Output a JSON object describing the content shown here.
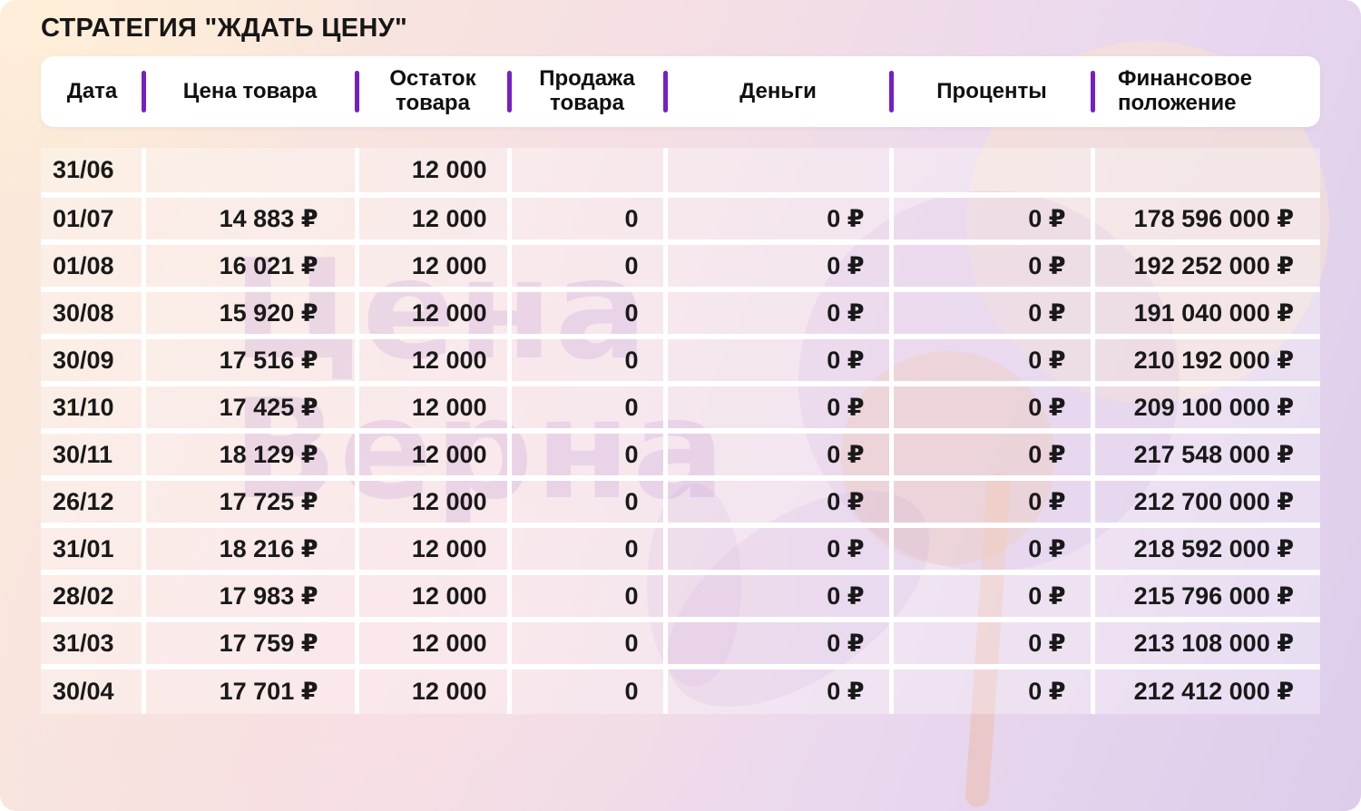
{
  "title": "СТРАТЕГИЯ \"ЖДАТЬ ЦЕНУ\"",
  "watermark": {
    "line1": "Цена",
    "line2": "Верна"
  },
  "colors": {
    "separator": "#7420c4",
    "header_bg": "#ffffff",
    "text": "#191919"
  },
  "chart_data": {
    "type": "table",
    "title": "СТРАТЕГИЯ \"ЖДАТЬ ЦЕНУ\"",
    "columns": [
      "Дата",
      "Цена товара",
      "Остаток товара",
      "Продажа товара",
      "Деньги",
      "Проценты",
      "Финансовое положение"
    ],
    "rows": [
      [
        "31/06",
        "",
        "12 000",
        "",
        "",
        "",
        ""
      ],
      [
        "01/07",
        "14 883 ₽",
        "12 000",
        "0",
        "0 ₽",
        "0 ₽",
        "178 596 000 ₽"
      ],
      [
        "01/08",
        "16 021 ₽",
        "12 000",
        "0",
        "0 ₽",
        "0 ₽",
        "192 252 000 ₽"
      ],
      [
        "30/08",
        "15 920 ₽",
        "12 000",
        "0",
        "0 ₽",
        "0 ₽",
        "191 040 000 ₽"
      ],
      [
        "30/09",
        "17 516 ₽",
        "12 000",
        "0",
        "0 ₽",
        "0 ₽",
        "210 192 000 ₽"
      ],
      [
        "31/10",
        "17 425 ₽",
        "12 000",
        "0",
        "0 ₽",
        "0 ₽",
        "209 100 000 ₽"
      ],
      [
        "30/11",
        "18 129 ₽",
        "12 000",
        "0",
        "0 ₽",
        "0 ₽",
        "217 548 000 ₽"
      ],
      [
        "26/12",
        "17 725 ₽",
        "12 000",
        "0",
        "0 ₽",
        "0 ₽",
        "212 700 000 ₽"
      ],
      [
        "31/01",
        "18 216 ₽",
        "12 000",
        "0",
        "0 ₽",
        "0 ₽",
        "218 592 000 ₽"
      ],
      [
        "28/02",
        "17 983 ₽",
        "12 000",
        "0",
        "0 ₽",
        "0 ₽",
        "215 796 000 ₽"
      ],
      [
        "31/03",
        "17 759 ₽",
        "12 000",
        "0",
        "0 ₽",
        "0 ₽",
        "213 108 000 ₽"
      ],
      [
        "30/04",
        "17 701 ₽",
        "12 000",
        "0",
        "0 ₽",
        "0 ₽",
        "212 412 000 ₽"
      ]
    ]
  }
}
